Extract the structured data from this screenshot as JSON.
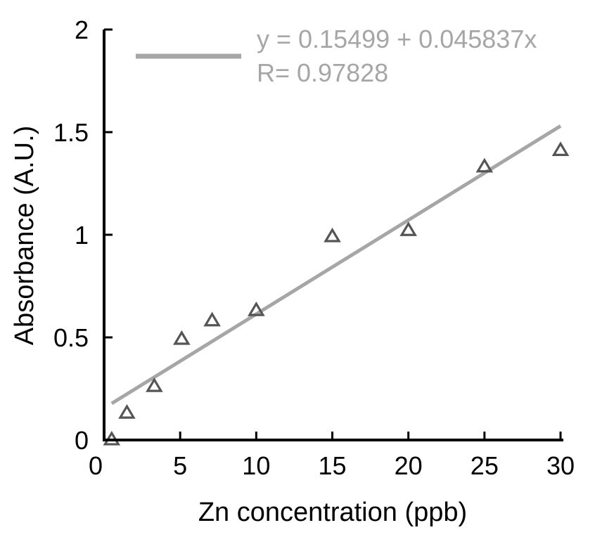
{
  "chart_data": {
    "type": "scatter",
    "xlabel": "Zn concentration (ppb)",
    "ylabel": "Absorbance (A.U.)",
    "xlim": [
      0,
      30
    ],
    "ylim": [
      0,
      2
    ],
    "xticks": [
      0,
      5,
      10,
      15,
      20,
      25,
      30
    ],
    "yticks": [
      0,
      0.5,
      1,
      1.5,
      2
    ],
    "grid": false,
    "legend_position": "top-right",
    "series": [
      {
        "marker": "open-triangle",
        "color": "#555555",
        "x": [
          0.5,
          1.5,
          3.3,
          5.1,
          7.1,
          10,
          15,
          20,
          25,
          30
        ],
        "y": [
          0,
          0.13,
          0.26,
          0.49,
          0.58,
          0.63,
          0.99,
          1.02,
          1.33,
          1.41
        ]
      }
    ],
    "fit": {
      "intercept": 0.15499,
      "slope": 0.045837,
      "x_range": [
        0.5,
        30
      ],
      "color": "#a6a6a6",
      "equation_label": "y = 0.15499 + 0.045837x",
      "r_label": "R= 0.97828"
    }
  }
}
